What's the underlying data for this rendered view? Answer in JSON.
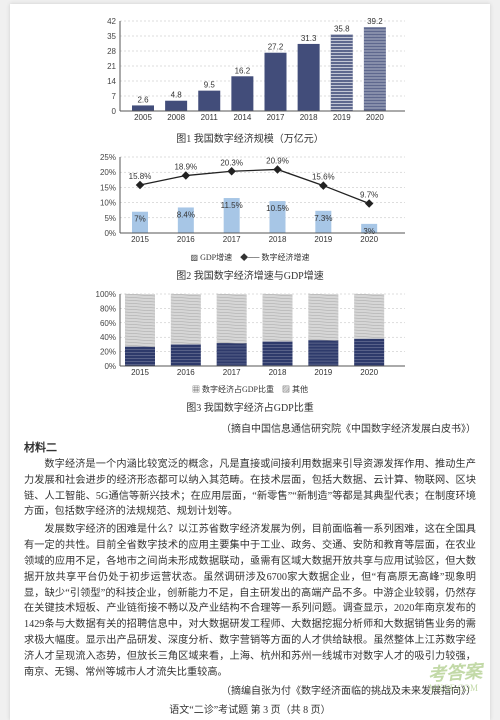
{
  "chart1": {
    "type": "bar",
    "years": [
      "2005",
      "2008",
      "2011",
      "2014",
      "2017",
      "2018",
      "2019",
      "2020"
    ],
    "values": [
      2.6,
      4.8,
      9.5,
      16.2,
      27.2,
      31.3,
      35.8,
      39.2
    ],
    "bar_color": "#424d7a",
    "hatch_years": [
      "2019",
      "2020"
    ],
    "ylim": [
      0,
      42
    ],
    "ytick_step": 7,
    "label_fontsize": 8,
    "background": "#ffffff",
    "caption": "图1  我国数字经济规模（万亿元）"
  },
  "chart2": {
    "type": "line+bar",
    "years": [
      "2015",
      "2016",
      "2017",
      "2018",
      "2019",
      "2020"
    ],
    "gdp_growth": [
      7.0,
      8.4,
      11.5,
      10.5,
      7.3,
      3.0
    ],
    "digital_growth": [
      15.8,
      18.9,
      20.3,
      20.9,
      15.6,
      9.7
    ],
    "ylim": [
      0,
      25
    ],
    "ytick_step": 5,
    "bar_color": "#a7c6e6",
    "line_color": "#222222",
    "marker": "diamond",
    "legend": [
      "GDP增速",
      "数字经济增速"
    ],
    "caption": "图2  我国数字经济增速与GDP增速"
  },
  "chart3": {
    "type": "stacked-bar",
    "years": [
      "2015",
      "2016",
      "2017",
      "2018",
      "2019",
      "2020"
    ],
    "digital_share": [
      27,
      30,
      32,
      34,
      36,
      38
    ],
    "other_share": [
      73,
      70,
      68,
      66,
      64,
      62
    ],
    "colors": {
      "digital": "#2e3a6b",
      "other": "#d6d6d6"
    },
    "ylim": [
      0,
      100
    ],
    "ytick_step": 20,
    "legend": [
      "数字经济占GDP比重",
      "其他"
    ],
    "caption": "图3  我国数字经济占GDP比重",
    "source": "（摘自中国信息通信研究院《中国数字经济发展白皮书》）"
  },
  "material2": {
    "heading": "材料二",
    "p1": "数字经济是一个内涵比较宽泛的概念，凡是直接或间接利用数据来引导资源发挥作用、推动生产力发展和社会进步的经济形态都可以纳入其范畴。在技术层面，包括大数据、云计算、物联网、区块链、人工智能、5G通信等新兴技术；在应用层面，“新零售”“新制造”等都是其典型代表；在制度环境方面，包括数字经济的法规规范、规划计划等。",
    "p2": "发展数字经济的困难是什么？以江苏省数字经济发展为例，目前面临着一系列困难，这在全国具有一定的共性。目前全省数字技术的应用主要集中于工业、政务、交通、安防和教育等层面，在农业领域的应用不足，各地市之间尚未形成数据联动，亟需有区域大数据开放共享与应用试验区，但大数据开放共享平台仍处于初步运营状态。虽然调研涉及6700家大数据企业，但“有高原无高峰”现象明显，缺少“引领型”的科技企业，创新能力不足，自主研发出的高端产品不多。中游企业较弱，仍然存在关键技术短板、产业链衔接不畅以及产业结构不合理等一系列问题。调查显示，2020年南京发布的1429条与大数据有关的招聘信息中，对大数据研发工程师、大数据挖掘分析师和大数据销售业务的需求极大幅度。显示出产品研发、深度分析、数字营销等方面的人才供给缺根。虽然整体上江苏数字经济人才呈现流入态势，但放长三角区域来看，上海、杭州和苏州一线城市对数字人才的吸引力较强，南京、无锡、常州等城市人才流失比重较高。",
    "source": "（摘编自张为付《数字经济面临的挑战及未来发展指向》）"
  },
  "footer": "语文“二诊”考试题  第 3 页（共 8 页）",
  "watermark": {
    "main": "考答案",
    "sub": "MXQE.COM"
  }
}
